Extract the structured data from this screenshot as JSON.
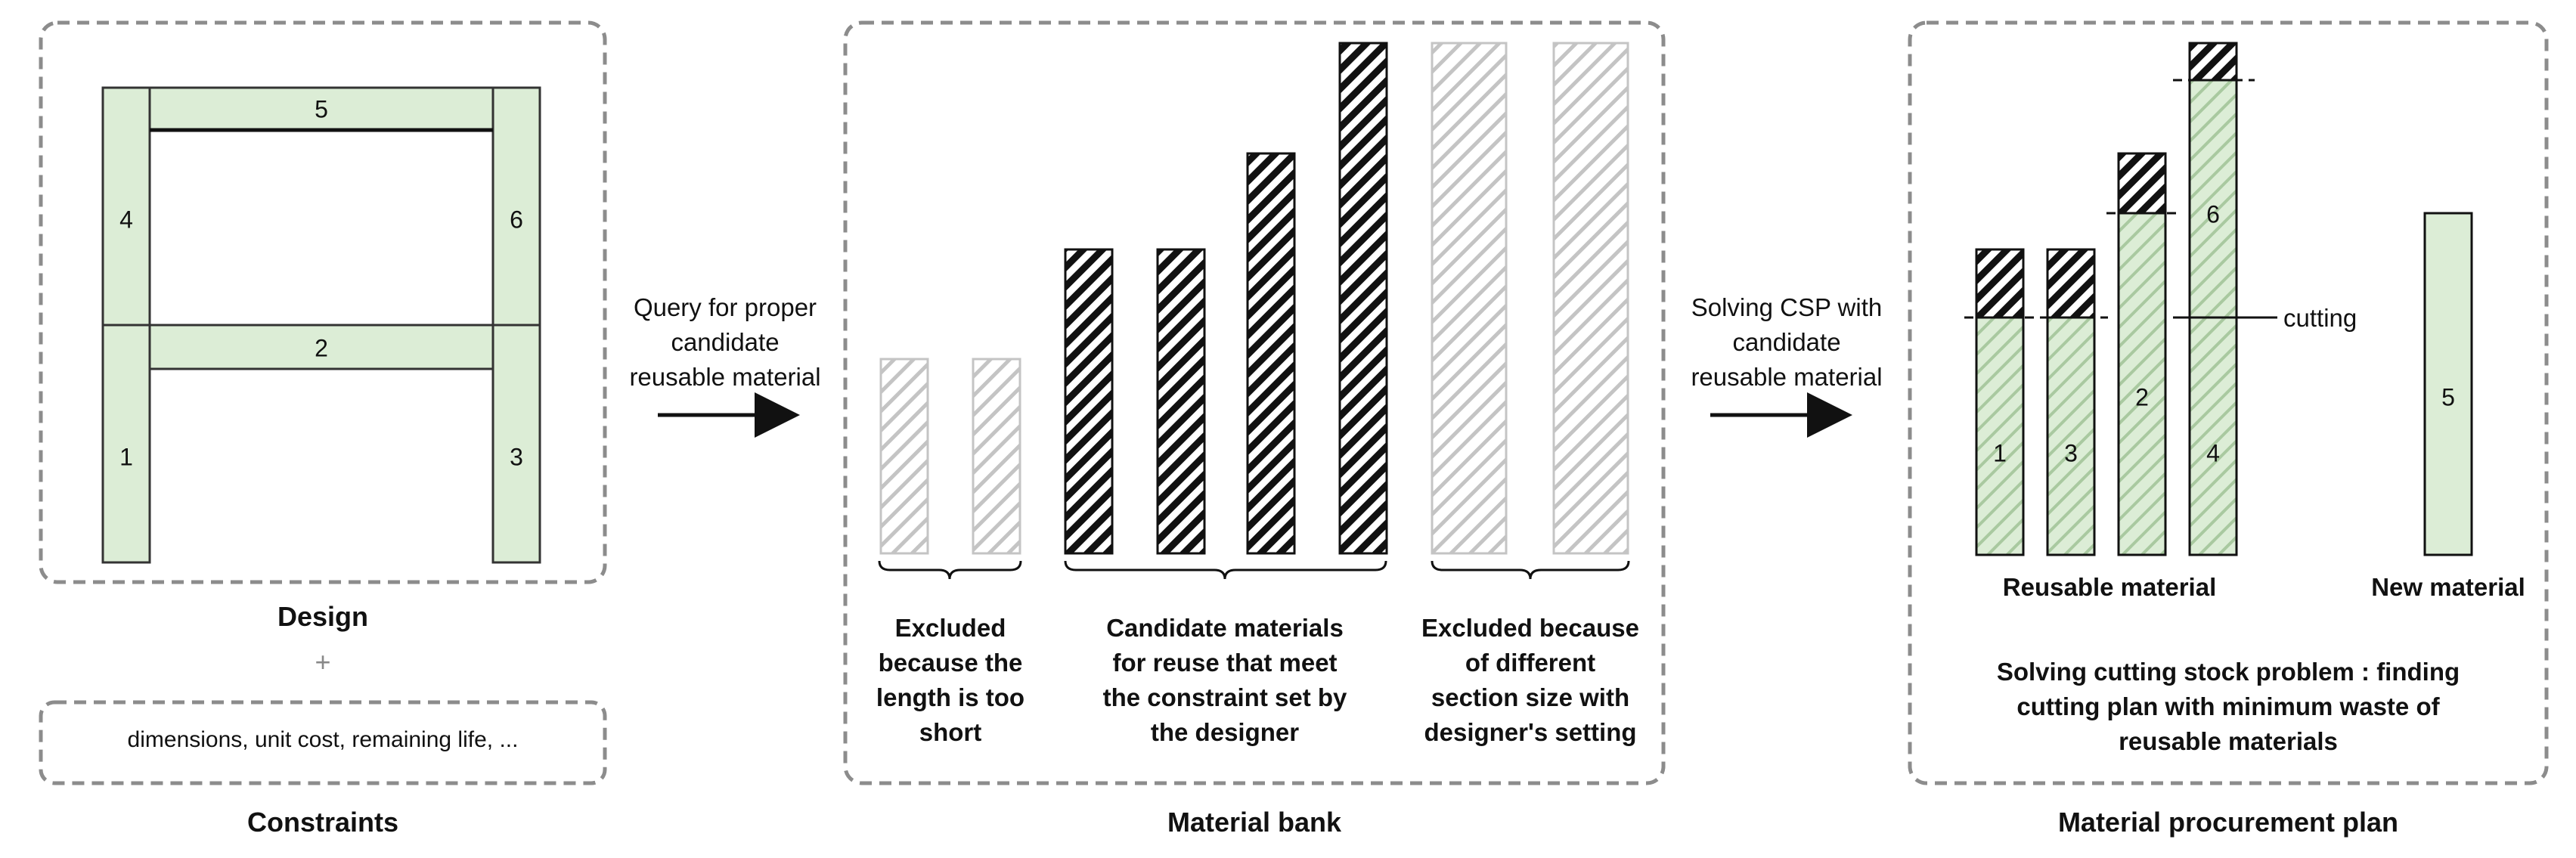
{
  "design": {
    "title": "Design",
    "plus": "+",
    "members": [
      {
        "id": "1",
        "label": "1"
      },
      {
        "id": "2",
        "label": "2"
      },
      {
        "id": "3",
        "label": "3"
      },
      {
        "id": "4",
        "label": "4"
      },
      {
        "id": "5",
        "label": "5"
      },
      {
        "id": "6",
        "label": "6"
      }
    ]
  },
  "constraints": {
    "text": "dimensions, unit cost, remaining life, ...",
    "title": "Constraints"
  },
  "arrow1": {
    "lines": [
      "Query for proper",
      "candidate",
      "reusable material"
    ]
  },
  "material_bank": {
    "title": "Material bank",
    "groups": [
      {
        "name": "excluded-short",
        "caption": [
          "Excluded",
          "because the",
          "length is too",
          "short"
        ]
      },
      {
        "name": "candidate",
        "caption": [
          "Candidate materials",
          "for reuse that meet",
          "the constraint set by",
          "the designer"
        ]
      },
      {
        "name": "excluded-section",
        "caption": [
          "Excluded because",
          "of different",
          "section size with",
          "designer's setting"
        ]
      }
    ]
  },
  "arrow2": {
    "lines": [
      "Solving CSP with",
      "candidate",
      "reusable material"
    ]
  },
  "procurement": {
    "title": "Material procurement plan",
    "cutting_label": "cutting",
    "reusable_label": "Reusable material",
    "new_label": "New material",
    "bar_labels": [
      "1",
      "3",
      "2",
      "4",
      "6",
      "5"
    ],
    "description": [
      "Solving cutting stock problem : finding",
      "cutting plan with minimum waste of",
      "reusable materials"
    ]
  },
  "colors": {
    "member_fill": "#dcedd6",
    "member_stroke": "#333333",
    "border_dash": "#8c8c8c",
    "hatch_dark": "#111111",
    "hatch_light": "#bdbdbd",
    "hatch_green": "#a9c9a0"
  }
}
